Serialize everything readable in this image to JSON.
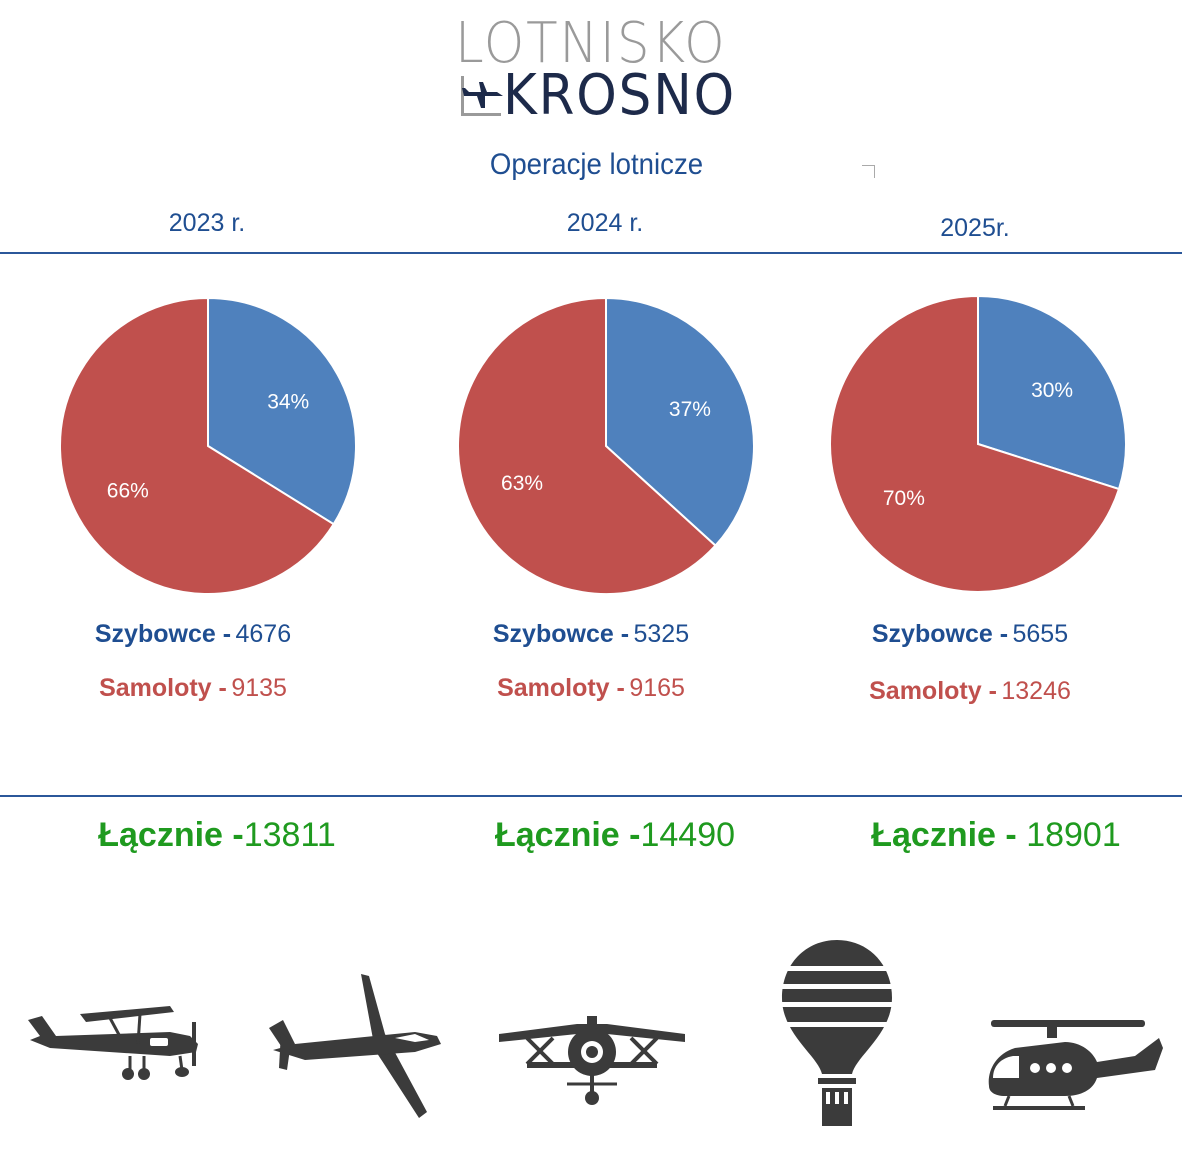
{
  "logo": {
    "line1": "LOTNISKO",
    "line2": "KROSNO"
  },
  "title": "Operacje lotnicze",
  "colors": {
    "szybowce": "#4f81bd",
    "samoloty": "#c0504d",
    "accent": "#1f4e91",
    "total": "#1f9a1f",
    "icons": "#3b3b3b"
  },
  "chart_data": [
    {
      "type": "pie",
      "title": "2023 r.",
      "series": [
        {
          "name": "Szybowce",
          "value": 4676,
          "percent_label": "34%"
        },
        {
          "name": "Samoloty",
          "value": 9135,
          "percent_label": "66%"
        }
      ],
      "total_label": "Łącznie -",
      "total": "13811"
    },
    {
      "type": "pie",
      "title": "2024 r.",
      "series": [
        {
          "name": "Szybowce",
          "value": 5325,
          "percent_label": "37%"
        },
        {
          "name": "Samoloty",
          "value": 9165,
          "percent_label": "63%"
        }
      ],
      "total_label": "Łącznie -",
      "total": "14490"
    },
    {
      "type": "pie",
      "title": "2025r.",
      "series": [
        {
          "name": "Szybowce",
          "value": 5655,
          "percent_label": "30%"
        },
        {
          "name": "Samoloty",
          "value": 13246,
          "percent_label": "70%"
        }
      ],
      "total_label": "Łącznie -",
      "total": "18901"
    }
  ],
  "legend_text": [
    {
      "szybowce": "Szybowce -",
      "szybowce_val": "4676",
      "samoloty": "Samoloty -",
      "samoloty_val": "9135"
    },
    {
      "szybowce": "Szybowce -",
      "szybowce_val": "5325",
      "samoloty": "Samoloty -",
      "samoloty_val": "9165"
    },
    {
      "szybowce": "Szybowce -",
      "szybowce_val": "5655",
      "samoloty": "Samoloty -",
      "samoloty_val": "13246"
    }
  ],
  "icons": [
    "ultralight-plane-icon",
    "glider-icon",
    "biplane-icon",
    "hot-air-balloon-icon",
    "helicopter-icon"
  ]
}
